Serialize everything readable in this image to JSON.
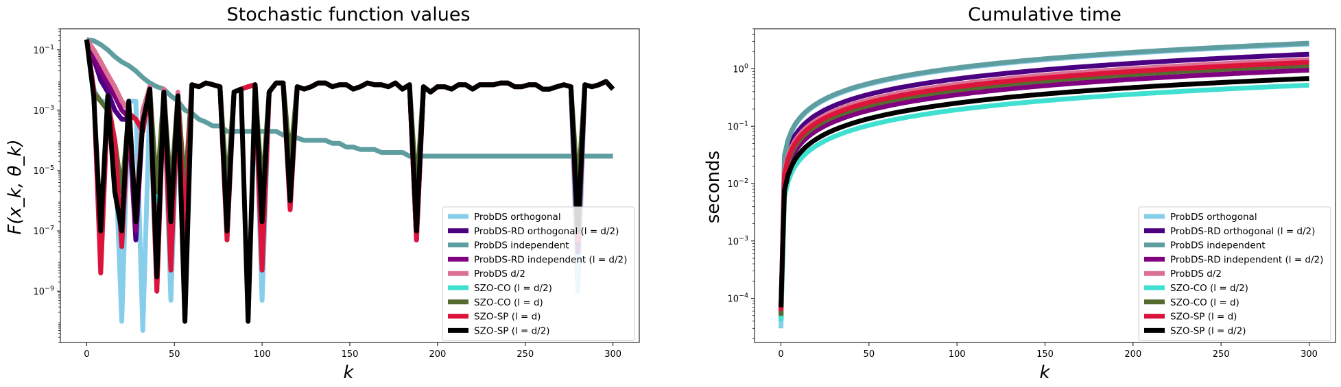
{
  "chart_data": [
    {
      "type": "line",
      "title": "Stochastic function values",
      "xlabel": "k",
      "ylabel": "F(x_k, θ_k)",
      "xlim": [
        -15,
        315
      ],
      "yscale": "log",
      "ylim": [
        2e-11,
        0.5
      ],
      "xticks": [
        0,
        50,
        100,
        150,
        200,
        250,
        300
      ],
      "yticks": [
        {
          "value": 1e-09,
          "base": "10",
          "exp": "−9"
        },
        {
          "value": 1e-07,
          "base": "10",
          "exp": "−7"
        },
        {
          "value": 1e-05,
          "base": "10",
          "exp": "−5"
        },
        {
          "value": 0.001,
          "base": "10",
          "exp": "−3"
        },
        {
          "value": 0.1,
          "base": "10",
          "exp": "−1"
        }
      ],
      "legend_position": "lower-right",
      "x_step": 4,
      "series": [
        {
          "name": "ProbDS orthogonal",
          "color": "#87ceeb",
          "values": [
            0.22,
            0.005,
            0.002,
            0.002,
            0.0001,
            1e-10,
            0.002,
            0.002,
            5e-11,
            0.002,
            1e-09,
            0.004,
            5e-10,
            0.003,
            2e-07,
            0.007,
            0.006,
            0.008,
            0.007,
            0.006,
            1e-07,
            0.004,
            0.005,
            0.006,
            0.007,
            5e-10,
            0.004,
            0.008,
            0.008,
            2e-06,
            0.006,
            0.005,
            0.006,
            0.008,
            0.008,
            0.006,
            0.007,
            0.007,
            0.005,
            0.006,
            0.008,
            0.007,
            0.007,
            0.006,
            0.008,
            0.005,
            0.007,
            2e-07,
            0.006,
            0.004,
            0.006,
            0.006,
            0.005,
            0.007,
            0.007,
            0.005,
            0.007,
            0.007,
            0.007,
            0.008,
            0.008,
            0.006,
            0.006,
            0.007,
            0.007,
            0.005,
            0.005,
            0.006,
            0.007,
            0.006,
            1e-09,
            0.007,
            0.006,
            0.007,
            0.009,
            0.005
          ]
        },
        {
          "name": "ProbDS-RD orthogonal (l = d/2)",
          "color": "#4b0082",
          "values": [
            0.22,
            0.05,
            0.01,
            0.004,
            0.001,
            0.0005,
            0.0005,
            5e-08,
            0.0005,
            0.005,
            1e-08,
            0.004,
            1e-07,
            0.003,
            5e-08,
            0.007,
            0.006,
            0.008,
            0.007,
            0.006,
            2e-07,
            0.004,
            0.005,
            0.006,
            0.007,
            2e-07,
            0.004,
            0.008,
            0.008,
            2e-06,
            0.006,
            0.005,
            0.006,
            0.008,
            0.008,
            0.006,
            0.007,
            0.007,
            0.005,
            0.006,
            0.008,
            0.007,
            0.007,
            0.006,
            0.008,
            0.005,
            0.007,
            5e-08,
            0.006,
            0.004,
            0.006,
            0.006,
            0.005,
            0.007,
            0.007,
            0.005,
            0.007,
            0.007,
            0.007,
            0.008,
            0.008,
            0.006,
            0.006,
            0.007,
            0.007,
            0.005,
            0.005,
            0.006,
            0.007,
            0.006,
            2e-08,
            0.007,
            0.006,
            0.007,
            0.009,
            0.005
          ]
        },
        {
          "name": "ProbDS independent",
          "color": "#5f9ea0",
          "values": [
            0.22,
            0.2,
            0.15,
            0.1,
            0.06,
            0.04,
            0.03,
            0.02,
            0.012,
            0.008,
            0.006,
            0.005,
            0.003,
            0.002,
            0.001,
            0.0008,
            0.0005,
            0.0004,
            0.0003,
            0.0003,
            0.0002,
            0.0002,
            0.0002,
            0.0002,
            0.0002,
            0.0002,
            0.0002,
            0.0002,
            0.00015,
            0.00015,
            0.00012,
            0.0001,
            0.0001,
            0.0001,
            0.0001,
            8e-05,
            8e-05,
            6e-05,
            6e-05,
            5e-05,
            5e-05,
            5e-05,
            4e-05,
            4e-05,
            4e-05,
            4e-05,
            3e-05,
            3e-05,
            3e-05,
            3e-05,
            3e-05,
            3e-05,
            3e-05,
            3e-05,
            3e-05,
            3e-05,
            3e-05,
            3e-05,
            3e-05,
            3e-05,
            3e-05,
            3e-05,
            3e-05,
            3e-05,
            3e-05,
            3e-05,
            3e-05,
            3e-05,
            3e-05,
            3e-05,
            3e-05,
            3e-05,
            3e-05,
            3e-05,
            3e-05,
            3e-05
          ]
        },
        {
          "name": "ProbDS-RD independent (l = d/2)",
          "color": "#800080",
          "values": [
            0.22,
            0.06,
            0.02,
            0.008,
            0.003,
            0.001,
            0.0006,
            1e-07,
            0.0006,
            0.005,
            2e-08,
            0.004,
            2e-07,
            0.003,
            1e-07,
            0.007,
            0.006,
            0.008,
            0.007,
            0.006,
            3e-07,
            0.004,
            0.005,
            0.006,
            0.007,
            3e-07,
            0.004,
            0.008,
            0.008,
            3e-06,
            0.006,
            0.005,
            0.006,
            0.008,
            0.008,
            0.006,
            0.007,
            0.007,
            0.005,
            0.006,
            0.008,
            0.007,
            0.007,
            0.006,
            0.008,
            0.005,
            0.007,
            1e-07,
            0.006,
            0.004,
            0.006,
            0.006,
            0.005,
            0.007,
            0.007,
            0.005,
            0.007,
            0.007,
            0.007,
            0.008,
            0.008,
            0.006,
            0.006,
            0.007,
            0.007,
            0.005,
            0.005,
            0.006,
            0.007,
            0.006,
            5e-08,
            0.007,
            0.006,
            0.007,
            0.009,
            0.005
          ]
        },
        {
          "name": "ProbDS d/2",
          "color": "#db7093",
          "values": [
            0.22,
            0.1,
            0.04,
            0.015,
            0.006,
            0.002,
            0.001,
            3e-07,
            0.001,
            0.006,
            5e-08,
            0.005,
            3e-07,
            0.004,
            2e-07,
            0.007,
            0.006,
            0.008,
            0.007,
            0.006,
            4e-07,
            0.004,
            0.005,
            0.006,
            0.007,
            4e-07,
            0.004,
            0.008,
            0.008,
            4e-06,
            0.006,
            0.005,
            0.006,
            0.008,
            0.008,
            0.006,
            0.007,
            0.007,
            0.005,
            0.006,
            0.008,
            0.007,
            0.007,
            0.006,
            0.008,
            0.005,
            0.007,
            2e-07,
            0.006,
            0.004,
            0.006,
            0.006,
            0.005,
            0.007,
            0.007,
            0.005,
            0.007,
            0.007,
            0.007,
            0.008,
            0.008,
            0.006,
            0.006,
            0.007,
            0.007,
            0.005,
            0.005,
            0.006,
            0.007,
            0.006,
            1e-07,
            0.007,
            0.006,
            0.007,
            0.009,
            0.005
          ]
        },
        {
          "name": "SZO-CO (l = d/2)",
          "color": "#40e0d0",
          "values": [
            0.22,
            0.003,
            0.002,
            0.001,
            0.0001,
            1e-06,
            0.0008,
            0.0005,
            0.0002,
            0.005,
            1e-06,
            0.004,
            1e-06,
            0.003,
            1e-06,
            0.007,
            0.006,
            0.008,
            0.007,
            0.006,
            1e-06,
            0.004,
            0.005,
            0.006,
            0.007,
            1e-06,
            0.004,
            0.008,
            0.008,
            1e-05,
            0.006,
            0.005,
            0.006,
            0.008,
            0.008,
            0.006,
            0.007,
            0.007,
            0.005,
            0.006,
            0.008,
            0.007,
            0.007,
            0.006,
            0.008,
            0.005,
            0.007,
            1e-06,
            0.006,
            0.004,
            0.006,
            0.006,
            0.005,
            0.007,
            0.007,
            0.005,
            0.007,
            0.007,
            0.007,
            0.008,
            0.008,
            0.006,
            0.006,
            0.007,
            0.007,
            0.005,
            0.005,
            0.006,
            0.007,
            0.006,
            1e-06,
            0.007,
            0.006,
            0.007,
            0.009,
            0.005
          ]
        },
        {
          "name": "SZO-CO (l = d)",
          "color": "#556b2f",
          "values": [
            0.22,
            0.004,
            0.002,
            0.001,
            0.0001,
            2e-06,
            0.0008,
            0.0005,
            0.0002,
            0.005,
            2e-06,
            0.004,
            2e-06,
            0.003,
            2e-06,
            0.007,
            0.006,
            0.008,
            0.007,
            0.006,
            2e-06,
            0.004,
            0.005,
            0.006,
            0.007,
            2e-06,
            0.004,
            0.008,
            0.008,
            2e-05,
            0.006,
            0.005,
            0.006,
            0.008,
            0.008,
            0.006,
            0.007,
            0.007,
            0.005,
            0.006,
            0.008,
            0.007,
            0.007,
            0.006,
            0.008,
            0.005,
            0.007,
            2e-06,
            0.006,
            0.004,
            0.006,
            0.006,
            0.005,
            0.007,
            0.007,
            0.005,
            0.007,
            0.007,
            0.007,
            0.008,
            0.008,
            0.006,
            0.006,
            0.007,
            0.007,
            0.005,
            0.005,
            0.006,
            0.007,
            0.006,
            2e-06,
            0.007,
            0.006,
            0.007,
            0.009,
            0.005
          ]
        },
        {
          "name": "SZO-SP (l = d)",
          "color": "#dc143c",
          "values": [
            0.22,
            0.005,
            4e-09,
            0.002,
            0.0001,
            3e-08,
            0.0008,
            0.0005,
            0.0002,
            0.005,
            1e-09,
            0.004,
            5e-09,
            0.003,
            5e-08,
            0.007,
            0.006,
            0.008,
            0.007,
            0.006,
            5e-08,
            0.004,
            0.005,
            0.006,
            0.007,
            5e-09,
            0.004,
            0.008,
            0.008,
            5e-07,
            0.006,
            0.005,
            0.006,
            0.008,
            0.008,
            0.006,
            0.007,
            0.007,
            0.005,
            0.006,
            0.008,
            0.007,
            0.007,
            0.006,
            0.008,
            0.005,
            0.007,
            5e-08,
            0.006,
            0.004,
            0.006,
            0.006,
            0.005,
            0.007,
            0.007,
            0.005,
            0.007,
            0.007,
            0.007,
            0.008,
            0.008,
            0.006,
            0.006,
            0.007,
            0.007,
            0.005,
            0.005,
            0.006,
            0.007,
            0.006,
            5e-08,
            0.007,
            0.006,
            0.007,
            0.009,
            0.005
          ]
        },
        {
          "name": "SZO-SP (l = d/2)",
          "color": "#000000",
          "values": [
            0.22,
            0.003,
            1e-07,
            0.003,
            2e-06,
            1e-07,
            0.002,
            2e-07,
            0.0004,
            0.005,
            3e-09,
            0.004,
            2e-07,
            0.003,
            1e-10,
            0.007,
            0.006,
            0.008,
            0.007,
            0.006,
            1e-07,
            0.004,
            0.005,
            1e-10,
            0.007,
            2e-07,
            0.004,
            0.008,
            0.008,
            1e-06,
            0.006,
            0.005,
            0.006,
            0.008,
            0.008,
            0.006,
            0.007,
            0.007,
            0.005,
            0.006,
            0.008,
            0.007,
            0.007,
            0.006,
            0.008,
            0.005,
            0.007,
            1e-07,
            0.006,
            0.004,
            0.006,
            0.006,
            0.005,
            0.007,
            0.007,
            0.005,
            0.007,
            0.007,
            0.007,
            0.008,
            0.008,
            0.006,
            0.006,
            0.007,
            0.007,
            0.005,
            0.005,
            0.006,
            0.007,
            0.006,
            1e-07,
            0.007,
            0.006,
            0.007,
            0.009,
            0.005
          ]
        }
      ]
    },
    {
      "type": "line",
      "title": "Cumulative time",
      "xlabel": "k",
      "ylabel": "seconds",
      "xlim": [
        -15,
        315
      ],
      "yscale": "log",
      "ylim": [
        1.7e-05,
        5
      ],
      "xticks": [
        0,
        50,
        100,
        150,
        200,
        250,
        300
      ],
      "yticks": [
        {
          "value": 0.0001,
          "base": "10",
          "exp": "−4"
        },
        {
          "value": 0.001,
          "base": "10",
          "exp": "−3"
        },
        {
          "value": 0.01,
          "base": "10",
          "exp": "−2"
        },
        {
          "value": 0.1,
          "base": "10",
          "exp": "−1"
        },
        {
          "value": 1,
          "base": "10",
          "exp": "0"
        }
      ],
      "legend_position": "lower-right",
      "series": [
        {
          "name": "ProbDS orthogonal",
          "color": "#87ceeb",
          "final": 2.7,
          "start": 3e-05
        },
        {
          "name": "ProbDS-RD orthogonal (l = d/2)",
          "color": "#4b0082",
          "final": 1.8,
          "start": 4e-05
        },
        {
          "name": "ProbDS independent",
          "color": "#5f9ea0",
          "final": 2.8,
          "start": 4e-05
        },
        {
          "name": "ProbDS-RD independent (l = d/2)",
          "color": "#800080",
          "final": 0.95,
          "start": 5e-05
        },
        {
          "name": "ProbDS d/2",
          "color": "#db7093",
          "final": 1.45,
          "start": 6e-05
        },
        {
          "name": "SZO-CO (l = d/2)",
          "color": "#40e0d0",
          "final": 0.52,
          "start": 4e-05
        },
        {
          "name": "SZO-CO (l = d)",
          "color": "#556b2f",
          "final": 1.15,
          "start": 5e-05
        },
        {
          "name": "SZO-SP (l = d)",
          "color": "#dc143c",
          "final": 1.3,
          "start": 6e-05
        },
        {
          "name": "SZO-SP (l = d/2)",
          "color": "#000000",
          "final": 0.68,
          "start": 7e-05
        }
      ]
    }
  ]
}
